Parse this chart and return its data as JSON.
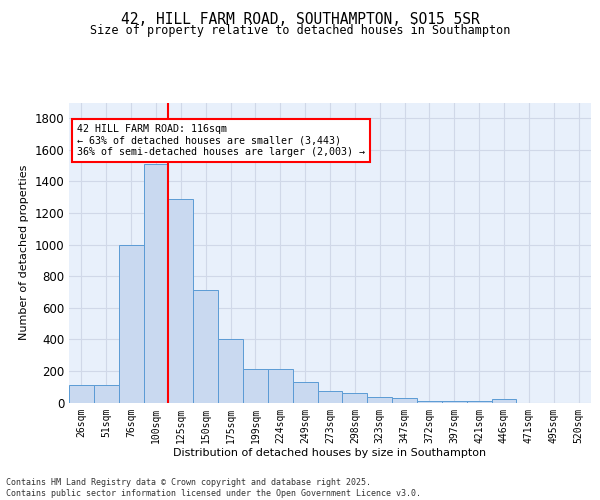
{
  "title1": "42, HILL FARM ROAD, SOUTHAMPTON, SO15 5SR",
  "title2": "Size of property relative to detached houses in Southampton",
  "xlabel": "Distribution of detached houses by size in Southampton",
  "ylabel": "Number of detached properties",
  "categories": [
    "26sqm",
    "51sqm",
    "76sqm",
    "100sqm",
    "125sqm",
    "150sqm",
    "175sqm",
    "199sqm",
    "224sqm",
    "249sqm",
    "273sqm",
    "298sqm",
    "323sqm",
    "347sqm",
    "372sqm",
    "397sqm",
    "421sqm",
    "446sqm",
    "471sqm",
    "495sqm",
    "520sqm"
  ],
  "values": [
    110,
    110,
    1000,
    1510,
    1290,
    710,
    400,
    215,
    215,
    130,
    75,
    60,
    35,
    30,
    10,
    10,
    10,
    20,
    0,
    0,
    0
  ],
  "bar_color": "#c9d9f0",
  "bar_edge_color": "#5b9bd5",
  "grid_color": "#d0d8e8",
  "bg_color": "#e8f0fb",
  "vline_x": 4.5,
  "vline_color": "red",
  "annotation_text": "42 HILL FARM ROAD: 116sqm\n← 63% of detached houses are smaller (3,443)\n36% of semi-detached houses are larger (2,003) →",
  "annotation_box_color": "red",
  "footnote": "Contains HM Land Registry data © Crown copyright and database right 2025.\nContains public sector information licensed under the Open Government Licence v3.0.",
  "ylim": [
    0,
    1900
  ],
  "yticks": [
    0,
    200,
    400,
    600,
    800,
    1000,
    1200,
    1400,
    1600,
    1800
  ]
}
